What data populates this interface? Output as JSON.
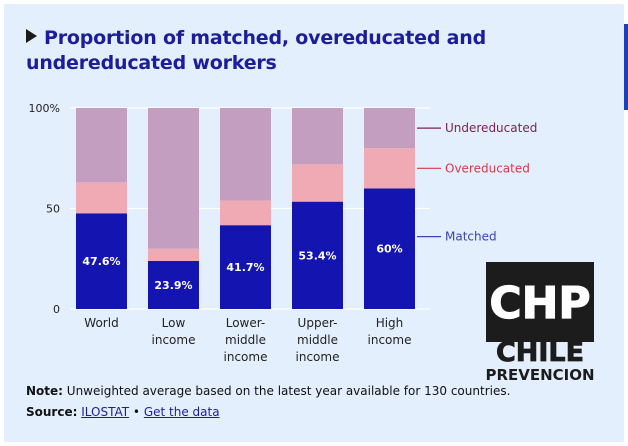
{
  "title": "Proportion of matched, overeducated and undereducated workers",
  "note_label": "Note:",
  "note_text": " Unweighted average based on the latest year available for 130 countries.",
  "source_label": "Source:",
  "source_link": "ILOSTAT",
  "source_sep": " • ",
  "source_link2": "Get the data",
  "logo": {
    "line1": "CHP",
    "line2": "CHILE",
    "line3": "PREVENCION"
  },
  "colors": {
    "matched": "#1414b0",
    "overeducated": "#f0aab4",
    "undereducated": "#c39ec1",
    "matched_label": "#3a43b8",
    "overeducated_label": "#d8384a",
    "undereducated_label": "#7a2450"
  },
  "chart_data": {
    "type": "bar",
    "stacked": true,
    "categories": [
      "World",
      "Low income",
      "Lower-middle income",
      "Upper-middle income",
      "High income"
    ],
    "category_lines": [
      [
        "World"
      ],
      [
        "Low",
        "income"
      ],
      [
        "Lower-",
        "middle",
        "income"
      ],
      [
        "Upper-",
        "middle",
        "income"
      ],
      [
        "High",
        "income"
      ]
    ],
    "series": [
      {
        "name": "Matched",
        "values": [
          47.6,
          23.9,
          41.7,
          53.4,
          60
        ],
        "labels": [
          "47.6%",
          "23.9%",
          "41.7%",
          "53.4%",
          "60%"
        ]
      },
      {
        "name": "Overeducated",
        "values": [
          15.4,
          6.1,
          12.3,
          18.6,
          20
        ]
      },
      {
        "name": "Undereducated",
        "values": [
          37,
          70,
          46,
          28,
          20
        ]
      }
    ],
    "yticks": [
      "0",
      "50",
      "100%"
    ],
    "ylim": [
      0,
      100
    ],
    "legend_placement": "right"
  }
}
